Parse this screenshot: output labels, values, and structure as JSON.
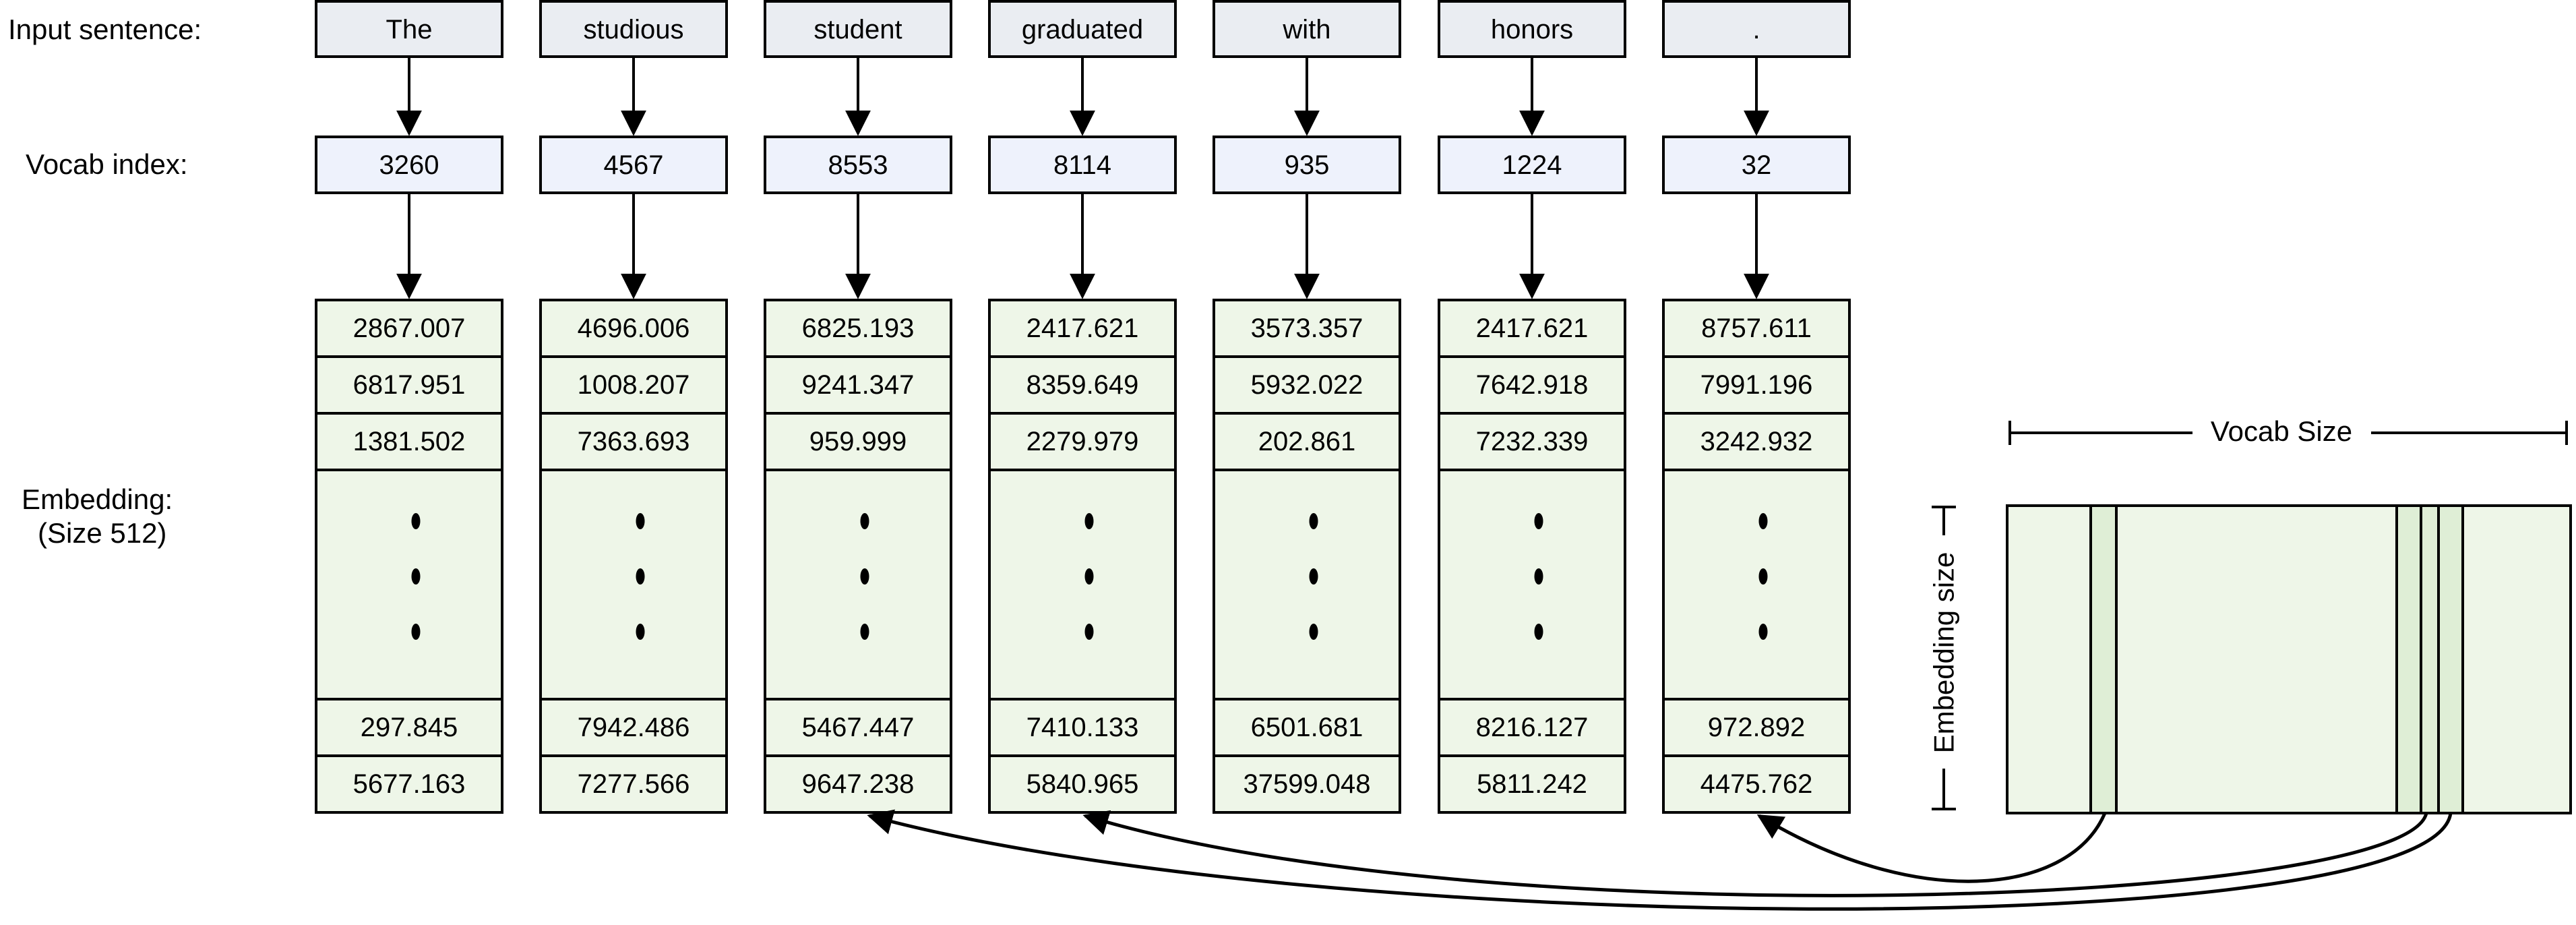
{
  "labels": {
    "input_sentence": "Input sentence:",
    "vocab_index": "Vocab index:",
    "embedding_line1": "Embedding:",
    "embedding_line2": "(Size 512)",
    "vocab_size": "Vocab Size",
    "embedding_size": "Embedding size"
  },
  "tokens": [
    {
      "word": "The",
      "index": "3260",
      "top": [
        "2867.007",
        "6817.951",
        "1381.502"
      ],
      "bottom": [
        "297.845",
        "5677.163"
      ]
    },
    {
      "word": "studious",
      "index": "4567",
      "top": [
        "4696.006",
        "1008.207",
        "7363.693"
      ],
      "bottom": [
        "7942.486",
        "7277.566"
      ]
    },
    {
      "word": "student",
      "index": "8553",
      "top": [
        "6825.193",
        "9241.347",
        "959.999"
      ],
      "bottom": [
        "5467.447",
        "9647.238"
      ]
    },
    {
      "word": "graduated",
      "index": "8114",
      "top": [
        "2417.621",
        "8359.649",
        "2279.979"
      ],
      "bottom": [
        "7410.133",
        "5840.965"
      ]
    },
    {
      "word": "with",
      "index": "935",
      "top": [
        "3573.357",
        "5932.022",
        "202.861"
      ],
      "bottom": [
        "6501.681",
        "37599.048"
      ]
    },
    {
      "word": "honors",
      "index": "1224",
      "top": [
        "2417.621",
        "7642.918",
        "7232.339"
      ],
      "bottom": [
        "8216.127",
        "5811.242"
      ]
    },
    {
      "word": ".",
      "index": "32",
      "top": [
        "8757.611",
        "7991.196",
        "3242.932"
      ],
      "bottom": [
        "972.892",
        "4475.762"
      ]
    }
  ],
  "colors": {
    "token_fill": "#eaedf2",
    "index_fill": "#eef2fc",
    "embedding_fill": "#eef6e8",
    "stroke": "#000000"
  }
}
